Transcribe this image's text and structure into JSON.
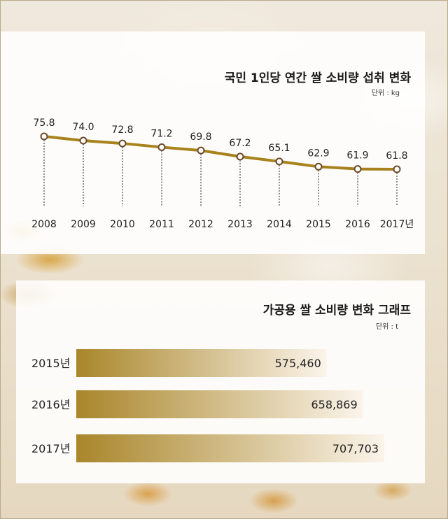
{
  "chart_data": [
    {
      "type": "line",
      "title": "국민 1인당 연간 쌀 소비량 섭취 변화",
      "unit_label": "단위 : kg",
      "categories": [
        "2008",
        "2009",
        "2010",
        "2011",
        "2012",
        "2013",
        "2014",
        "2015",
        "2016",
        "2017년"
      ],
      "values": [
        75.8,
        74.0,
        72.8,
        71.2,
        69.8,
        67.2,
        65.1,
        62.9,
        61.9,
        61.8
      ],
      "value_labels": [
        "75.8",
        "74.0",
        "72.8",
        "71.2",
        "69.8",
        "67.2",
        "65.1",
        "62.9",
        "61.9",
        "61.8"
      ],
      "ylim": [
        61.8,
        75.8
      ],
      "grid": false,
      "colors": {
        "line": "#a8821c",
        "marker_fill": "#ffffff",
        "marker_stroke": "#6b4a2a"
      }
    },
    {
      "type": "bar",
      "title": "가공용 쌀 소비량 변화 그래프",
      "unit_label": "단위 : t",
      "categories": [
        "2015년",
        "2016년",
        "2017년"
      ],
      "values": [
        575460,
        658869,
        707703
      ],
      "value_labels": [
        "575,460",
        "658,869",
        "707,703"
      ],
      "ylim": [
        0,
        707703
      ],
      "orientation": "horizontal",
      "colors": {
        "bar_start": "#a9862a",
        "bar_end": "#fbf4ea"
      }
    }
  ]
}
